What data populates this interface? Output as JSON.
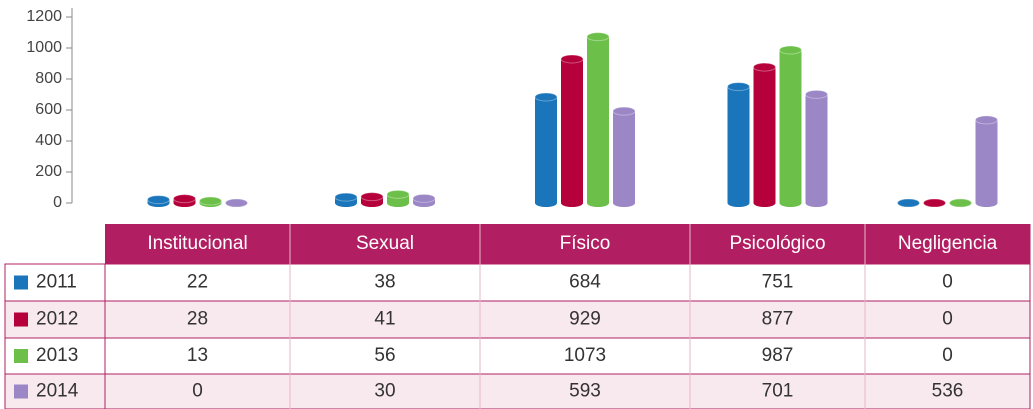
{
  "chart_data": {
    "type": "bar",
    "categories": [
      "Institucional",
      "Sexual",
      "Físico",
      "Psicológico",
      "Negligencia"
    ],
    "series": [
      {
        "name": "2011",
        "color": "#1a75bb",
        "values": [
          22,
          38,
          684,
          751,
          0
        ]
      },
      {
        "name": "2012",
        "color": "#b5003b",
        "values": [
          28,
          41,
          929,
          877,
          0
        ]
      },
      {
        "name": "2013",
        "color": "#6cc04a",
        "values": [
          13,
          56,
          1073,
          987,
          0
        ]
      },
      {
        "name": "2014",
        "color": "#9b87c6",
        "values": [
          0,
          30,
          593,
          701,
          536
        ]
      }
    ],
    "ylim": [
      0,
      1200
    ],
    "yticks": [
      0,
      200,
      400,
      600,
      800,
      1000,
      1200
    ]
  }
}
